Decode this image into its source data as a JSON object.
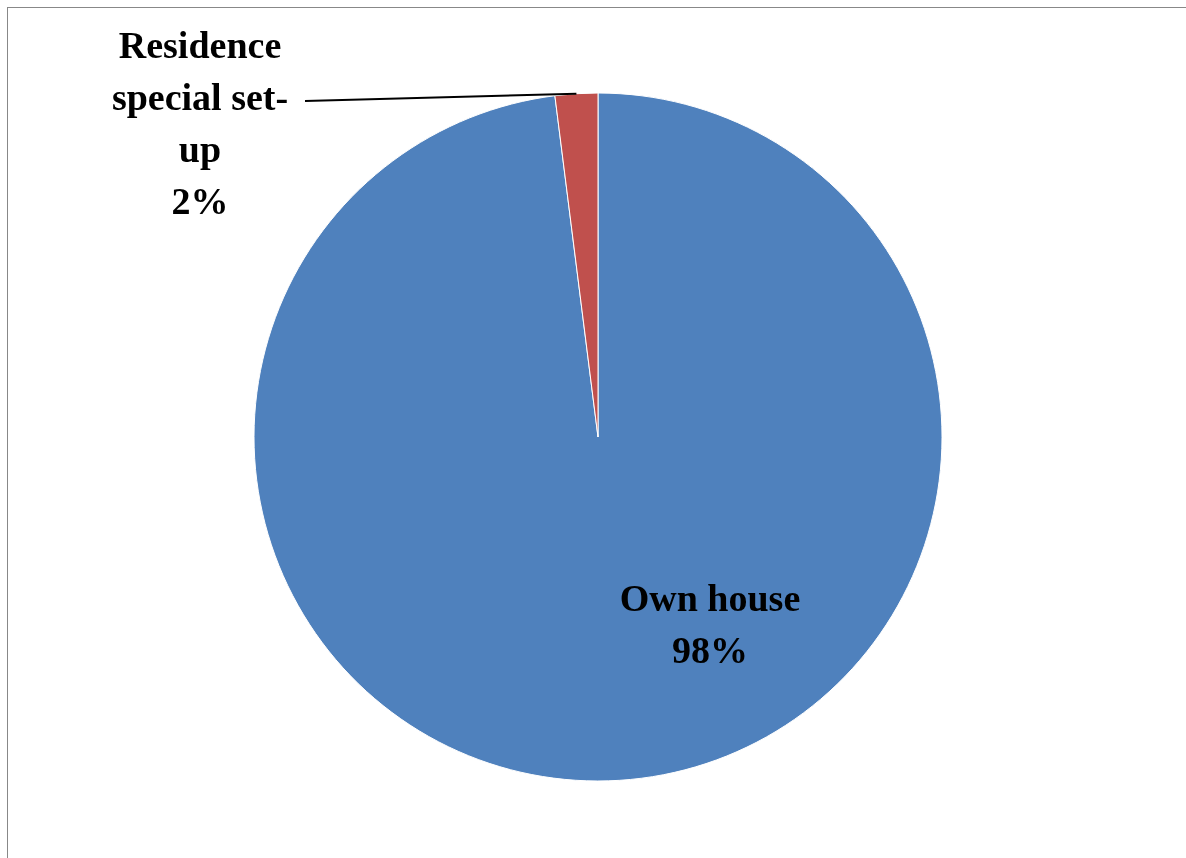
{
  "chart_data": {
    "type": "pie",
    "categories": [
      "Own house",
      "Residence special set-up"
    ],
    "values": [
      98,
      2
    ],
    "colors": [
      "#4f81bd",
      "#c0504d"
    ],
    "value_labels": [
      "98%",
      "2%"
    ]
  }
}
